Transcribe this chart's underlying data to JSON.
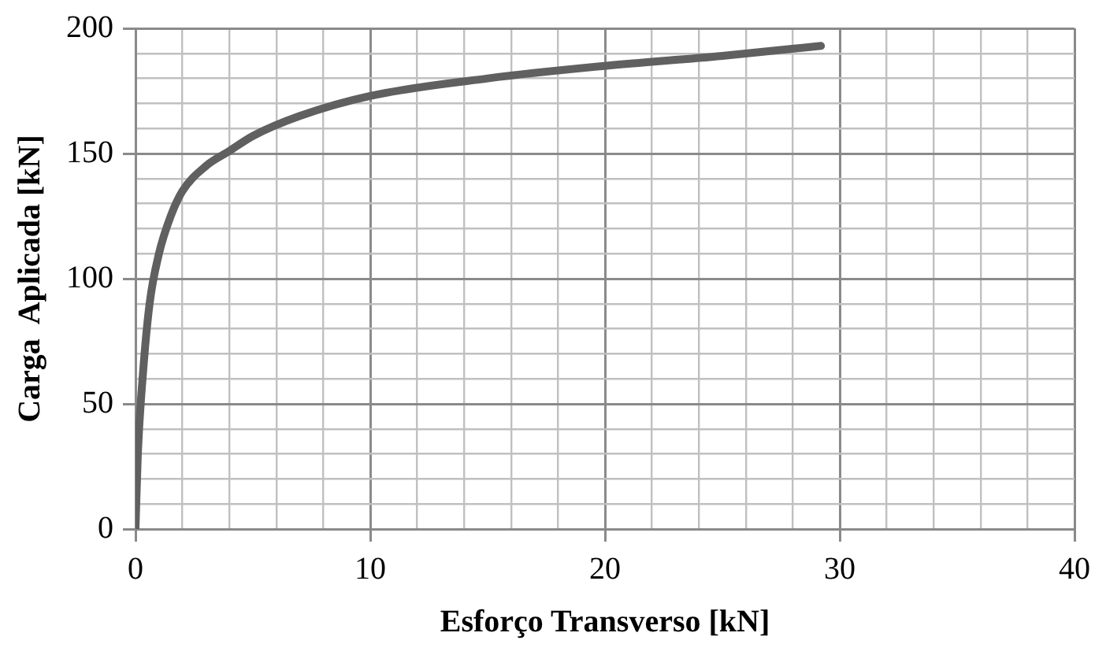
{
  "chart_data": {
    "type": "line",
    "xlabel": "Esforço Transverso [kN]",
    "ylabel": "Carga  Aplicada [kN]",
    "xlim": [
      0,
      40
    ],
    "ylim": [
      0,
      200
    ],
    "xticks": [
      0,
      {
        "value": 2,
        "label": null
      },
      {
        "value": 4,
        "label": null
      },
      {
        "value": 6,
        "label": null
      },
      {
        "value": 8,
        "label": null
      },
      10,
      {
        "value": 12,
        "label": null
      },
      {
        "value": 14,
        "label": null
      },
      {
        "value": 16,
        "label": null
      },
      {
        "value": 18,
        "label": null
      },
      20,
      {
        "value": 22,
        "label": null
      },
      {
        "value": 24,
        "label": null
      },
      {
        "value": 26,
        "label": null
      },
      {
        "value": 28,
        "label": null
      },
      30,
      {
        "value": 32,
        "label": null
      },
      {
        "value": 34,
        "label": null
      },
      {
        "value": 36,
        "label": null
      },
      {
        "value": 38,
        "label": null
      },
      40
    ],
    "yticks": [
      0,
      {
        "value": 10,
        "label": null
      },
      {
        "value": 20,
        "label": null
      },
      {
        "value": 30,
        "label": null
      },
      {
        "value": 40,
        "label": null
      },
      50,
      {
        "value": 60,
        "label": null
      },
      {
        "value": 70,
        "label": null
      },
      {
        "value": 80,
        "label": null
      },
      {
        "value": 90,
        "label": null
      },
      100,
      {
        "value": 110,
        "label": null
      },
      {
        "value": 120,
        "label": null
      },
      {
        "value": 130,
        "label": null
      },
      {
        "value": 140,
        "label": null
      },
      150,
      {
        "value": 160,
        "label": null
      },
      {
        "value": 170,
        "label": null
      },
      {
        "value": 180,
        "label": null
      },
      {
        "value": 190,
        "label": null
      },
      200
    ],
    "grid": true,
    "legend": false,
    "marker": "none",
    "line_style": "solid",
    "series": [
      {
        "color": "#606060",
        "x": [
          0,
          0.1,
          0.3,
          0.6,
          1,
          1.5,
          2,
          3,
          4,
          5,
          7,
          10,
          15,
          20,
          25,
          29.2
        ],
        "values": [
          0,
          30,
          60,
          90,
          110,
          125,
          135,
          145,
          151,
          157,
          165,
          173,
          180,
          185,
          189,
          193
        ]
      }
    ]
  }
}
